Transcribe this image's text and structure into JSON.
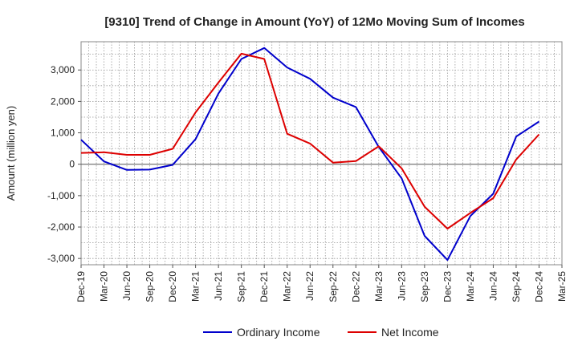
{
  "chart_data": {
    "type": "line",
    "title": "[9310]  Trend of Change in Amount (YoY) of 12Mo Moving Sum of Incomes",
    "xlabel": "",
    "ylabel": "Amount (million yen)",
    "ylim": [
      -3200,
      3900
    ],
    "yticks": [
      -3000,
      -2000,
      -1000,
      0,
      1000,
      2000,
      3000
    ],
    "ytick_labels": [
      "-3,000",
      "-2,000",
      "-1,000",
      "0",
      "1,000",
      "2,000",
      "3,000"
    ],
    "categories": [
      "Dec-19",
      "Mar-20",
      "Jun-20",
      "Sep-20",
      "Dec-20",
      "Mar-21",
      "Jun-21",
      "Sep-21",
      "Dec-21",
      "Mar-22",
      "Jun-22",
      "Sep-22",
      "Dec-22",
      "Mar-23",
      "Jun-23",
      "Sep-23",
      "Dec-23",
      "Mar-24",
      "Jun-24",
      "Sep-24",
      "Dec-24",
      "Mar-25"
    ],
    "grid": true,
    "legend_position": "bottom",
    "series": [
      {
        "name": "Ordinary Income",
        "color": "#0000cc",
        "values": [
          780,
          90,
          -180,
          -170,
          -20,
          800,
          2250,
          3350,
          3700,
          3080,
          2720,
          2120,
          1820,
          550,
          -450,
          -2280,
          -3050,
          -1650,
          -940,
          880,
          1360,
          null
        ]
      },
      {
        "name": "Net Income",
        "color": "#dd0000",
        "values": [
          360,
          380,
          300,
          300,
          490,
          1650,
          2600,
          3520,
          3350,
          970,
          660,
          50,
          100,
          570,
          -130,
          -1350,
          -2050,
          -1550,
          -1080,
          150,
          950,
          null
        ]
      }
    ]
  }
}
